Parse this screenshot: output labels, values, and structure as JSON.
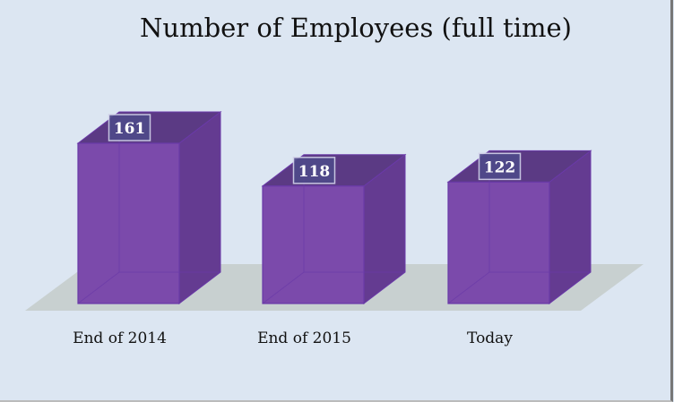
{
  "chart_data": {
    "type": "bar",
    "title": "Number of Employees (full time)",
    "categories": [
      "End of 2014",
      "End of 2015",
      "Today"
    ],
    "values": [
      161,
      118,
      122
    ],
    "xlabel": "",
    "ylabel": "",
    "ylim": [
      0,
      161
    ],
    "grid": false,
    "legend": "none",
    "style": "3d-column",
    "colors": {
      "bar_front": "#7b4aab",
      "bar_side": "#643b91",
      "bar_top": "#5b3a84",
      "floor": "#c8d0d0",
      "label_bg": "#4f4a8a",
      "background": "#dce6f2"
    }
  }
}
